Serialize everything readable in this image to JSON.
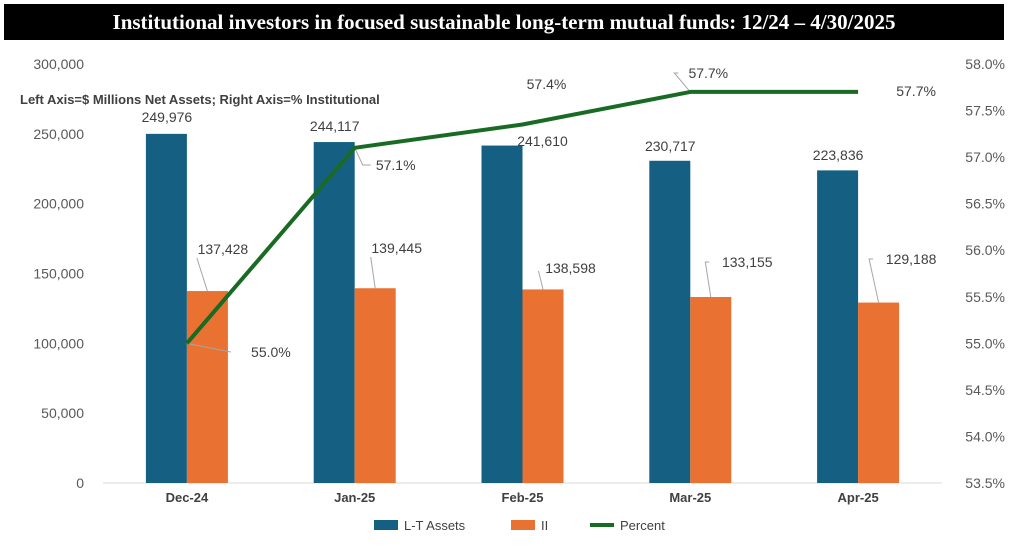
{
  "title": "Institutional investors in focused sustainable long-term mutual funds:  12/24 – 4/30/2025",
  "chart_data": {
    "type": "bar",
    "subtitle": "Left Axis=$ Millions Net Assets; Right Axis=% Institutional",
    "categories": [
      "Dec-24",
      "Jan-25",
      "Feb-25",
      "Mar-25",
      "Apr-25"
    ],
    "series": [
      {
        "name": "L-T Assets",
        "type": "bar",
        "axis": "left",
        "color": "#156082",
        "values": [
          249976,
          244117,
          241610,
          230717,
          223836
        ],
        "labels": [
          "249,976",
          "244,117",
          "241,610",
          "230,717",
          "223,836"
        ]
      },
      {
        "name": "II",
        "type": "bar",
        "axis": "left",
        "color": "#E97132",
        "values": [
          137428,
          139445,
          138598,
          133155,
          129188
        ],
        "labels": [
          "137,428",
          "139,445",
          "138,598",
          "133,155",
          "129,188"
        ]
      },
      {
        "name": "Percent",
        "type": "line",
        "axis": "right",
        "color": "#196B24",
        "values": [
          55.0,
          57.1,
          57.35,
          57.7,
          57.7
        ],
        "labels": [
          "55.0%",
          "57.1%",
          "57.4%",
          "57.7%",
          "57.7%"
        ]
      }
    ],
    "left_axis": {
      "min": 0,
      "max": 300000,
      "ticks": [
        "0",
        "50,000",
        "100,000",
        "150,000",
        "200,000",
        "250,000",
        "300,000"
      ]
    },
    "right_axis": {
      "min": 53.5,
      "max": 58.0,
      "ticks": [
        "53.5%",
        "54.0%",
        "54.5%",
        "55.0%",
        "55.5%",
        "56.0%",
        "56.5%",
        "57.0%",
        "57.5%",
        "58.0%"
      ]
    },
    "grid": false,
    "legend": "bottom"
  }
}
